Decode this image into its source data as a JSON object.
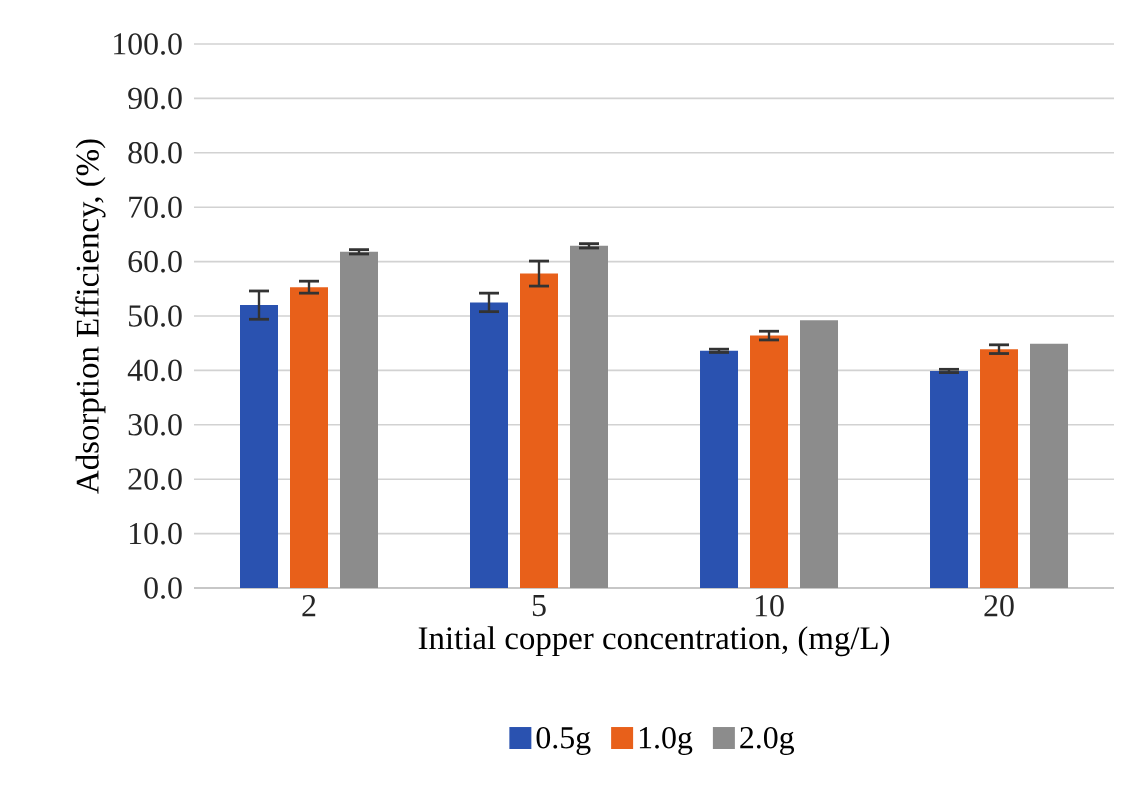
{
  "chart_data": {
    "type": "bar",
    "xlabel": "Initial copper concentration, (mg/L)",
    "ylabel": "Adsorption Efficiency, (%)",
    "categories": [
      "2",
      "5",
      "10",
      "20"
    ],
    "series": [
      {
        "name": "0.5g",
        "color": "#2a52b0",
        "values": [
          52.0,
          52.5,
          43.6,
          39.9
        ],
        "errors": [
          2.6,
          1.7,
          0.3,
          0.3
        ]
      },
      {
        "name": "1.0g",
        "color": "#e8601a",
        "values": [
          55.3,
          57.8,
          46.4,
          43.9
        ],
        "errors": [
          1.1,
          2.3,
          0.8,
          0.8
        ]
      },
      {
        "name": "2.0g",
        "color": "#8c8c8c",
        "values": [
          61.8,
          62.9,
          49.2,
          44.9
        ],
        "errors": [
          0.4,
          0.4,
          null,
          null
        ]
      }
    ],
    "ylim": [
      0,
      100
    ],
    "yticks": [
      {
        "value": 0,
        "label": "0.0"
      },
      {
        "value": 10,
        "label": "10.0"
      },
      {
        "value": 20,
        "label": "20.0"
      },
      {
        "value": 30,
        "label": "30.0"
      },
      {
        "value": 40,
        "label": "40.0"
      },
      {
        "value": 50,
        "label": "50.0"
      },
      {
        "value": 60,
        "label": "60.0"
      },
      {
        "value": 70,
        "label": "70.0"
      },
      {
        "value": 80,
        "label": "80.0"
      },
      {
        "value": 90,
        "label": "90.0"
      },
      {
        "value": 100,
        "label": "100.0"
      }
    ],
    "grid": "y",
    "legend": "bottom"
  }
}
